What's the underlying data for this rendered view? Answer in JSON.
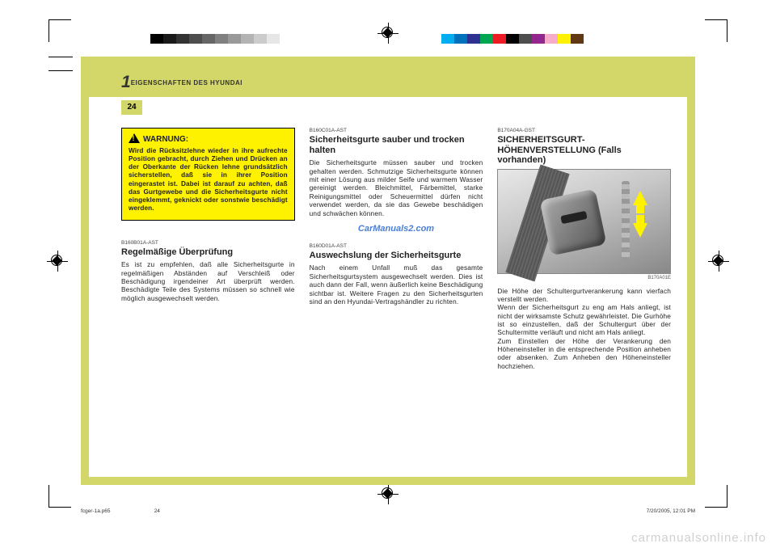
{
  "meta": {
    "section_number": "1",
    "section_title": "EIGENSCHAFTEN DES HYUNDAI",
    "page_number": "24"
  },
  "colorbars": {
    "left": [
      "#000000",
      "#1a1a1a",
      "#333333",
      "#4d4d4d",
      "#666666",
      "#808080",
      "#999999",
      "#b3b3b3",
      "#cccccc",
      "#e6e6e6",
      "#ffffff"
    ],
    "right": [
      "#00aeef",
      "#0072bc",
      "#2e3192",
      "#00a651",
      "#ed1c24",
      "#000000",
      "#4d4d4d",
      "#92278f",
      "#f7adc9",
      "#fff200",
      "#603913"
    ]
  },
  "warning": {
    "label": "WARNUNG:",
    "body": "Wird die Rücksitzlehne wieder in ihre aufrechte Position gebracht, durch Ziehen und Drücken an der Oberkante der Rücken lehne grundsätzlich sicherstellen, daß sie in ihrer Position eingerastet ist. Dabei ist darauf zu achten, daß das Gurtgewebe und die Sicherheitsgurte nicht eingeklemmt, geknickt oder sonstwie beschädigt werden."
  },
  "col1": {
    "s1_code": "B160B01A-AST",
    "s1_title": "Regelmäßige Überprüfung",
    "s1_body": "Es ist zu empfehlen, daß alle Sicherheitsgurte in regelmäßigen Abständen auf Verschleiß oder Beschädigung irgendeiner Art überprüft werden. Beschädigte Teile des Systems müssen so schnell wie möglich ausgewechselt werden."
  },
  "col2": {
    "s1_code": "B160C01A-AST",
    "s1_title": "Sicherheitsgurte sauber und trocken halten",
    "s1_body": "Die Sicherheitsgurte müssen sauber und trocken gehalten werden. Schmutzige Sicherheitsgurte können mit einer Lösung aus milder Seife und warmem Wasser gereinigt werden. Bleichmittel, Färbemittel, starke Reinigungsmittel oder Scheuermittel dürfen nicht verwendet werden, da sie das Gewebe beschädigen und schwächen können.",
    "watermark": "CarManuals2.com",
    "s2_code": "B160D01A-AST",
    "s2_title": "Auswechslung der Sicherheitsgurte",
    "s2_body": "Nach einem Unfall muß das gesamte Sicherheitsgurtsystem ausgewechselt werden. Dies ist auch dann der Fall, wenn äußerlich keine Beschädigung sichtbar ist. Weitere Fragen zu den Sicherheitsgurten sind an den Hyundai-Vertragshändler zu richten."
  },
  "col3": {
    "s1_code": "B170A04A-GST",
    "s1_title": "SICHERHEITSGURT-HÖHENVERSTELLUNG (Falls vorhanden)",
    "illus_code": "B170A01E",
    "s1_body": "Die Höhe der Schultergurtverankerung kann vierfach verstellt werden.\nWenn der Sicherheitsgurt zu eng am Hals anliegt, ist nicht der wirksamste Schutz gewährleistet. Die Gurhöhe ist so einzustellen, daß der Schultergurt über der Schultermitte verläuft und nicht am Hals anliegt.\nZum Einstellen der Höhe der Verankerung den Höheneinsteller in die entsprechende Position anheben oder absenken. Zum Anheben den Höheneinsteller hochziehen."
  },
  "footer": {
    "file": "fcger-1a.p65",
    "page": "24",
    "datetime": "7/20/2005, 12:01 PM"
  },
  "bottom_watermark": "carmanualsonline.info",
  "styling": {
    "page_bg": "#d3d76a",
    "warn_bg": "#fff200",
    "watermark_color": "#4a7fd6",
    "body_font_size_pt": 8.3,
    "title_font_size_pt": 11,
    "code_font_size_pt": 6.5
  }
}
